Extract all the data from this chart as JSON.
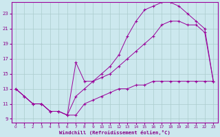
{
  "bg_color": "#cce8ee",
  "line_color": "#990099",
  "grid_color": "#aacccc",
  "xlabel": "Windchill (Refroidissement éolien,°C)",
  "xlabel_color": "#880088",
  "tick_color": "#880088",
  "xlim": [
    -0.5,
    23.5
  ],
  "ylim": [
    8.5,
    24.5
  ],
  "yticks": [
    9,
    11,
    13,
    15,
    17,
    19,
    21,
    23
  ],
  "xticks": [
    0,
    1,
    2,
    3,
    4,
    5,
    6,
    7,
    8,
    9,
    10,
    11,
    12,
    13,
    14,
    15,
    16,
    17,
    18,
    19,
    20,
    21,
    22,
    23
  ],
  "line_upper_x": [
    0,
    1,
    2,
    3,
    4,
    5,
    6,
    7,
    8,
    9,
    10,
    11,
    12,
    13,
    14,
    15,
    16,
    17,
    18,
    19,
    20,
    21,
    22,
    23
  ],
  "line_upper_y": [
    13,
    12,
    11,
    11,
    10,
    10,
    9.5,
    12,
    13,
    14,
    15,
    16,
    17.5,
    20,
    22,
    23.5,
    24,
    24.5,
    24.5,
    24,
    23,
    22,
    21,
    14
  ],
  "line_mid_x": [
    0,
    1,
    2,
    3,
    4,
    5,
    6,
    7,
    8,
    9,
    10,
    11,
    12,
    13,
    14,
    15,
    16,
    17,
    18,
    19,
    20,
    21,
    22,
    23
  ],
  "line_mid_y": [
    13,
    12,
    11,
    11,
    10,
    10,
    9.5,
    16.5,
    14,
    14,
    14.5,
    15,
    16,
    17,
    18,
    19,
    20,
    21.5,
    22,
    22,
    21.5,
    21.5,
    20.5,
    14
  ],
  "line_lower_x": [
    0,
    1,
    2,
    3,
    4,
    5,
    6,
    7,
    8,
    9,
    10,
    11,
    12,
    13,
    14,
    15,
    16,
    17,
    18,
    19,
    20,
    21,
    22,
    23
  ],
  "line_lower_y": [
    13,
    12,
    11,
    11,
    10,
    10,
    9.5,
    9.5,
    11,
    11.5,
    12,
    12.5,
    13,
    13,
    13.5,
    13.5,
    14,
    14,
    14,
    14,
    14,
    14,
    14,
    14
  ]
}
